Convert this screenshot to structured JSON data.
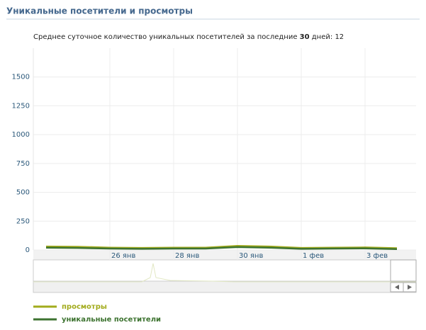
{
  "title": "Уникальные посетители и просмотры",
  "summary": {
    "prefix": "Среднее суточное количество уникальных посетителей за последние ",
    "days": "30",
    "suffix": " дней: ",
    "value": "12"
  },
  "chart_data": {
    "type": "line",
    "categories": [
      null,
      null,
      "26 янв",
      null,
      "28 янв",
      null,
      "30 янв",
      null,
      "1 фев",
      null,
      "3 фев",
      null
    ],
    "series": [
      {
        "name": "просмотры",
        "color": "#a2ab1c",
        "values": [
          30,
          28,
          20,
          18,
          20,
          20,
          35,
          30,
          18,
          20,
          22,
          15
        ]
      },
      {
        "name": "уникальные посетители",
        "color": "#3d7330",
        "values": [
          20,
          18,
          12,
          10,
          12,
          12,
          25,
          20,
          10,
          12,
          14,
          8
        ]
      }
    ],
    "ylim": [
      0,
      1750
    ],
    "yticks": [
      0,
      250,
      500,
      750,
      1000,
      1250,
      1500
    ],
    "grid": true
  }
}
